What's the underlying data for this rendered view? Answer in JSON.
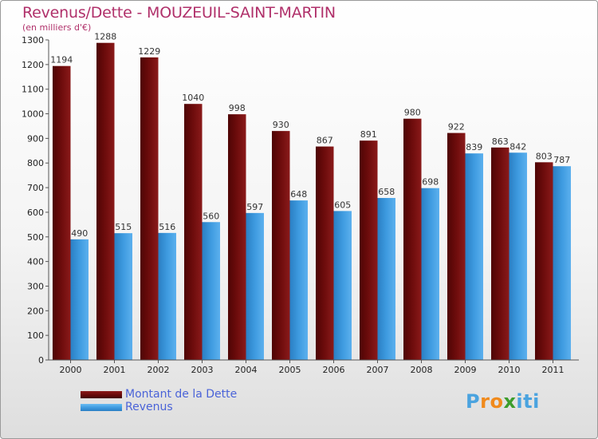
{
  "title": "Revenus/Dette - MOUZEUIL-SAINT-MARTIN",
  "subtitle": "(en milliers d'€)",
  "colors": {
    "dette": "#6b0b0b",
    "revenus": "#3e9be0",
    "title": "#b0306a",
    "legend_text": "#4a63d8"
  },
  "chart_data": {
    "type": "bar",
    "categories": [
      "2000",
      "2001",
      "2002",
      "2003",
      "2004",
      "2005",
      "2006",
      "2007",
      "2008",
      "2009",
      "2010",
      "2011"
    ],
    "series": [
      {
        "name": "Montant de la Dette",
        "values": [
          1194,
          1288,
          1229,
          1040,
          998,
          930,
          867,
          891,
          980,
          922,
          863,
          803
        ]
      },
      {
        "name": "Revenus",
        "values": [
          490,
          515,
          516,
          560,
          597,
          648,
          605,
          658,
          698,
          839,
          842,
          787
        ]
      }
    ],
    "ylim": [
      0,
      1300
    ],
    "yticks": [
      0,
      100,
      200,
      300,
      400,
      500,
      600,
      700,
      800,
      900,
      1000,
      1100,
      1200,
      1300
    ],
    "grid": false,
    "legend_position": "bottom-left"
  },
  "legend": [
    {
      "label": "Montant de la Dette"
    },
    {
      "label": "Revenus"
    }
  ],
  "logo": {
    "text": "Proxiti",
    "letters": [
      "P",
      "r",
      "o",
      "x",
      "i",
      "t",
      "i"
    ],
    "colors": [
      "#4aa3df",
      "#f08a1c",
      "#f08a1c",
      "#3c9d2c",
      "#4aa3df",
      "#4aa3df",
      "#4aa3df"
    ]
  }
}
